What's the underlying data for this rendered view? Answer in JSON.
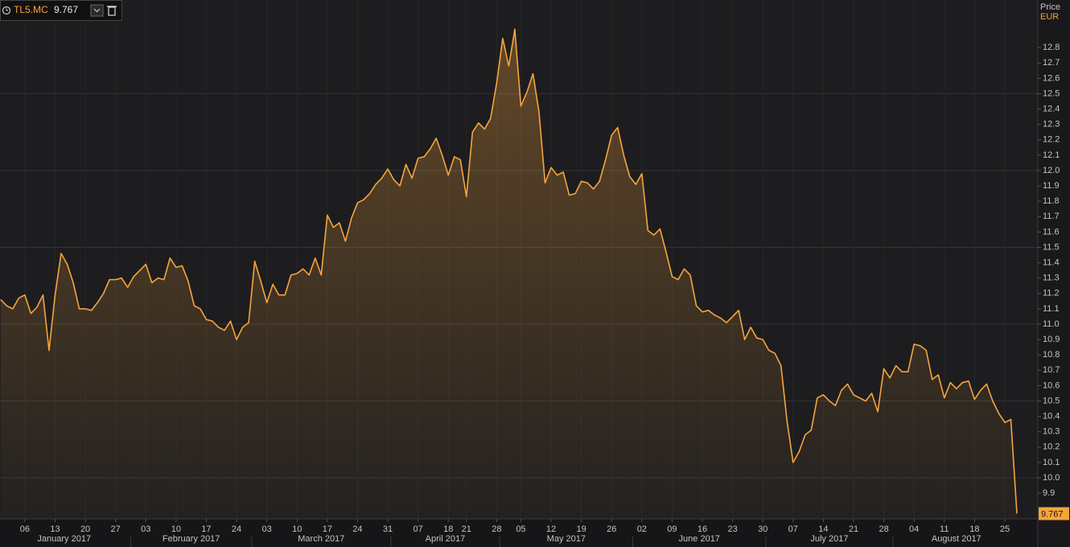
{
  "chart_data": {
    "type": "area_line",
    "y_label": "Price",
    "currency": "EUR",
    "x": [
      "2017-01-02",
      "2017-01-03",
      "2017-01-04",
      "2017-01-05",
      "2017-01-06",
      "2017-01-09",
      "2017-01-10",
      "2017-01-11",
      "2017-01-12",
      "2017-01-13",
      "2017-01-16",
      "2017-01-17",
      "2017-01-18",
      "2017-01-19",
      "2017-01-20",
      "2017-01-23",
      "2017-01-24",
      "2017-01-25",
      "2017-01-26",
      "2017-01-27",
      "2017-01-30",
      "2017-01-31",
      "2017-02-01",
      "2017-02-02",
      "2017-02-03",
      "2017-02-06",
      "2017-02-07",
      "2017-02-08",
      "2017-02-09",
      "2017-02-10",
      "2017-02-13",
      "2017-02-14",
      "2017-02-15",
      "2017-02-16",
      "2017-02-17",
      "2017-02-20",
      "2017-02-21",
      "2017-02-22",
      "2017-02-23",
      "2017-02-24",
      "2017-02-27",
      "2017-02-28",
      "2017-03-01",
      "2017-03-02",
      "2017-03-03",
      "2017-03-06",
      "2017-03-07",
      "2017-03-08",
      "2017-03-09",
      "2017-03-10",
      "2017-03-13",
      "2017-03-14",
      "2017-03-15",
      "2017-03-16",
      "2017-03-17",
      "2017-03-20",
      "2017-03-21",
      "2017-03-22",
      "2017-03-23",
      "2017-03-24",
      "2017-03-27",
      "2017-03-28",
      "2017-03-29",
      "2017-03-30",
      "2017-03-31",
      "2017-04-03",
      "2017-04-04",
      "2017-04-05",
      "2017-04-06",
      "2017-04-07",
      "2017-04-10",
      "2017-04-11",
      "2017-04-12",
      "2017-04-13",
      "2017-04-18",
      "2017-04-19",
      "2017-04-20",
      "2017-04-21",
      "2017-04-24",
      "2017-04-25",
      "2017-04-26",
      "2017-04-27",
      "2017-04-28",
      "2017-05-02",
      "2017-05-03",
      "2017-05-04",
      "2017-05-05",
      "2017-05-08",
      "2017-05-09",
      "2017-05-10",
      "2017-05-11",
      "2017-05-12",
      "2017-05-15",
      "2017-05-16",
      "2017-05-17",
      "2017-05-18",
      "2017-05-19",
      "2017-05-22",
      "2017-05-23",
      "2017-05-24",
      "2017-05-25",
      "2017-05-26",
      "2017-05-29",
      "2017-05-30",
      "2017-05-31",
      "2017-06-01",
      "2017-06-02",
      "2017-06-05",
      "2017-06-06",
      "2017-06-07",
      "2017-06-08",
      "2017-06-09",
      "2017-06-12",
      "2017-06-13",
      "2017-06-14",
      "2017-06-15",
      "2017-06-16",
      "2017-06-19",
      "2017-06-20",
      "2017-06-21",
      "2017-06-22",
      "2017-06-23",
      "2017-06-26",
      "2017-06-27",
      "2017-06-28",
      "2017-06-29",
      "2017-06-30",
      "2017-07-03",
      "2017-07-04",
      "2017-07-05",
      "2017-07-06",
      "2017-07-07",
      "2017-07-10",
      "2017-07-11",
      "2017-07-12",
      "2017-07-13",
      "2017-07-14",
      "2017-07-17",
      "2017-07-18",
      "2017-07-19",
      "2017-07-20",
      "2017-07-21",
      "2017-07-24",
      "2017-07-25",
      "2017-07-26",
      "2017-07-27",
      "2017-07-28",
      "2017-07-31",
      "2017-08-01",
      "2017-08-02",
      "2017-08-03",
      "2017-08-04",
      "2017-08-07",
      "2017-08-08",
      "2017-08-09",
      "2017-08-10",
      "2017-08-11",
      "2017-08-14",
      "2017-08-15",
      "2017-08-16",
      "2017-08-17",
      "2017-08-18",
      "2017-08-21",
      "2017-08-22",
      "2017-08-23",
      "2017-08-24",
      "2017-08-25",
      "2017-08-28",
      "2017-08-29"
    ],
    "series": [
      {
        "name": "TL5.MC",
        "color": "#f7a43c",
        "values": [
          11.16,
          11.12,
          11.1,
          11.17,
          11.19,
          11.07,
          11.11,
          11.19,
          10.83,
          11.19,
          11.46,
          11.39,
          11.27,
          11.1,
          11.1,
          11.09,
          11.14,
          11.2,
          11.29,
          11.29,
          11.3,
          11.24,
          11.31,
          11.35,
          11.39,
          11.27,
          11.3,
          11.29,
          11.43,
          11.37,
          11.38,
          11.28,
          11.12,
          11.1,
          11.03,
          11.02,
          10.98,
          10.96,
          11.02,
          10.9,
          10.98,
          11.01,
          11.41,
          11.28,
          11.14,
          11.26,
          11.19,
          11.19,
          11.32,
          11.33,
          11.36,
          11.32,
          11.43,
          11.32,
          11.71,
          11.63,
          11.66,
          11.54,
          11.69,
          11.79,
          11.81,
          11.85,
          11.91,
          11.95,
          12.01,
          11.94,
          11.9,
          12.04,
          11.95,
          12.08,
          12.09,
          12.14,
          12.21,
          12.1,
          11.97,
          12.09,
          12.07,
          11.83,
          12.25,
          12.31,
          12.27,
          12.34,
          12.57,
          12.86,
          12.68,
          12.92,
          12.42,
          12.51,
          12.63,
          12.38,
          11.92,
          12.02,
          11.97,
          11.99,
          11.84,
          11.85,
          11.93,
          11.92,
          11.88,
          11.93,
          12.07,
          12.23,
          12.28,
          12.1,
          11.96,
          11.91,
          11.98,
          11.61,
          11.58,
          11.62,
          11.47,
          11.31,
          11.29,
          11.36,
          11.32,
          11.12,
          11.08,
          11.09,
          11.06,
          11.04,
          11.01,
          11.05,
          11.09,
          10.9,
          10.98,
          10.91,
          10.9,
          10.83,
          10.81,
          10.73,
          10.37,
          10.1,
          10.17,
          10.28,
          10.31,
          10.52,
          10.54,
          10.5,
          10.47,
          10.57,
          10.61,
          10.54,
          10.52,
          10.5,
          10.55,
          10.43,
          10.71,
          10.65,
          10.73,
          10.69,
          10.69,
          10.87,
          10.86,
          10.83,
          10.64,
          10.67,
          10.52,
          10.62,
          10.58,
          10.62,
          10.63,
          10.51,
          10.57,
          10.61,
          10.5,
          10.42,
          10.36,
          10.38,
          9.767
        ]
      }
    ],
    "ylim": [
      9.733,
      13.11
    ],
    "yticks": [
      9.9,
      {
        "value": 10,
        "label": "10.0"
      },
      10.1,
      10.2,
      10.3,
      10.4,
      10.5,
      10.6,
      10.7,
      10.8,
      10.9,
      {
        "value": 11,
        "label": "11.0"
      },
      11.1,
      11.2,
      11.3,
      11.4,
      11.5,
      11.6,
      11.7,
      11.8,
      11.9,
      {
        "value": 12,
        "label": "12.0"
      },
      12.1,
      12.2,
      12.3,
      12.4,
      12.5,
      12.6,
      12.7,
      12.8
    ],
    "grid_yticks": [
      10,
      10.5,
      11,
      11.5,
      12,
      12.5
    ],
    "xticks": [
      {
        "value": "2017-01-06",
        "label": "06"
      },
      {
        "value": "2017-01-13",
        "label": "13"
      },
      {
        "value": "2017-01-20",
        "label": "20"
      },
      {
        "value": "2017-01-27",
        "label": "27"
      },
      {
        "value": "2017-02-03",
        "label": "03"
      },
      {
        "value": "2017-02-10",
        "label": "10"
      },
      {
        "value": "2017-02-17",
        "label": "17"
      },
      {
        "value": "2017-02-24",
        "label": "24"
      },
      {
        "value": "2017-03-03",
        "label": "03"
      },
      {
        "value": "2017-03-10",
        "label": "10"
      },
      {
        "value": "2017-03-17",
        "label": "17"
      },
      {
        "value": "2017-03-24",
        "label": "24"
      },
      {
        "value": "2017-03-31",
        "label": "31"
      },
      {
        "value": "2017-04-07",
        "label": "07"
      },
      {
        "value": "2017-04-18",
        "label": "18"
      },
      {
        "value": "2017-04-21",
        "label": "21"
      },
      {
        "value": "2017-04-28",
        "label": "28"
      },
      {
        "value": "2017-05-05",
        "label": "05"
      },
      {
        "value": "2017-05-12",
        "label": "12"
      },
      {
        "value": "2017-05-19",
        "label": "19"
      },
      {
        "value": "2017-05-26",
        "label": "26"
      },
      {
        "value": "2017-06-02",
        "label": "02"
      },
      {
        "value": "2017-06-09",
        "label": "09"
      },
      {
        "value": "2017-06-16",
        "label": "16"
      },
      {
        "value": "2017-06-23",
        "label": "23"
      },
      {
        "value": "2017-06-30",
        "label": "30"
      },
      {
        "value": "2017-07-07",
        "label": "07"
      },
      {
        "value": "2017-07-14",
        "label": "14"
      },
      {
        "value": "2017-07-21",
        "label": "21"
      },
      {
        "value": "2017-07-28",
        "label": "28"
      },
      {
        "value": "2017-08-04",
        "label": "04"
      },
      {
        "value": "2017-08-11",
        "label": "11"
      },
      {
        "value": "2017-08-18",
        "label": "18"
      },
      {
        "value": "2017-08-25",
        "label": "25"
      }
    ],
    "months": [
      {
        "value": "2017-01",
        "label": "January 2017"
      },
      {
        "value": "2017-02",
        "label": "February 2017"
      },
      {
        "value": "2017-03",
        "label": "March 2017"
      },
      {
        "value": "2017-04",
        "label": "April 2017"
      },
      {
        "value": "2017-05",
        "label": "May 2017"
      },
      {
        "value": "2017-06",
        "label": "June 2017"
      },
      {
        "value": "2017-07",
        "label": "July 2017"
      },
      {
        "value": "2017-08",
        "label": "August 2017"
      }
    ],
    "grid": true
  }
}
